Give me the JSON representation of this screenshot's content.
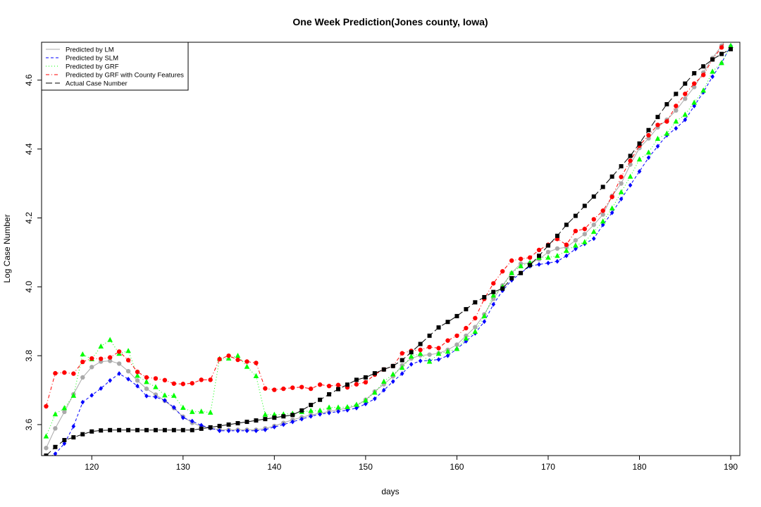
{
  "chart_data": {
    "type": "line",
    "title": "One Week Prediction(Jones county, Iowa)",
    "xlabel": "days",
    "ylabel": "Log Case Number",
    "xlim": [
      114.5,
      191
    ],
    "ylim": [
      3.51,
      4.71
    ],
    "x_ticks": [
      120,
      130,
      140,
      150,
      160,
      170,
      180,
      190
    ],
    "y_ticks": [
      3.6,
      3.8,
      4.0,
      4.2,
      4.4,
      4.6
    ],
    "grid": false,
    "legend_position": "top-left",
    "x": [
      115,
      116,
      117,
      118,
      119,
      120,
      121,
      122,
      123,
      124,
      125,
      126,
      127,
      128,
      129,
      130,
      131,
      132,
      133,
      134,
      135,
      136,
      137,
      138,
      139,
      140,
      141,
      142,
      143,
      144,
      145,
      146,
      147,
      148,
      149,
      150,
      151,
      152,
      153,
      154,
      155,
      156,
      157,
      158,
      159,
      160,
      161,
      162,
      163,
      164,
      165,
      166,
      167,
      168,
      169,
      170,
      171,
      172,
      173,
      174,
      175,
      176,
      177,
      178,
      179,
      180,
      181,
      182,
      183,
      184,
      185,
      186,
      187,
      188,
      189,
      190
    ],
    "series": [
      {
        "name": "Predicted by LM",
        "color": "#aaaaaa",
        "marker": "circle",
        "line_style": "solid",
        "values": [
          3.532,
          3.589,
          3.637,
          3.688,
          3.737,
          3.767,
          3.783,
          3.785,
          3.777,
          3.755,
          3.728,
          3.704,
          3.687,
          3.669,
          3.648,
          3.623,
          3.605,
          3.595,
          3.59,
          3.585,
          3.585,
          3.585,
          3.585,
          3.585,
          3.589,
          3.596,
          3.605,
          3.614,
          3.621,
          3.628,
          3.633,
          3.638,
          3.643,
          3.648,
          3.655,
          3.672,
          3.696,
          3.717,
          3.74,
          3.772,
          3.792,
          3.801,
          3.803,
          3.807,
          3.817,
          3.832,
          3.858,
          3.883,
          3.92,
          3.965,
          4.004,
          4.04,
          4.067,
          4.069,
          4.08,
          4.101,
          4.111,
          4.115,
          4.135,
          4.153,
          4.18,
          4.21,
          4.264,
          4.3,
          4.355,
          4.403,
          4.431,
          4.463,
          4.485,
          4.512,
          4.546,
          4.58,
          4.622,
          4.664,
          4.7,
          4.74
        ]
      },
      {
        "name": "Predicted by SLM",
        "color": "#0000ff",
        "marker": "diamond",
        "line_style": "dashed",
        "values": [
          3.5,
          3.515,
          3.545,
          3.595,
          3.665,
          3.685,
          3.705,
          3.728,
          3.748,
          3.732,
          3.712,
          3.683,
          3.68,
          3.67,
          3.65,
          3.62,
          3.61,
          3.598,
          3.59,
          3.582,
          3.582,
          3.582,
          3.582,
          3.582,
          3.585,
          3.593,
          3.6,
          3.608,
          3.616,
          3.624,
          3.63,
          3.634,
          3.638,
          3.642,
          3.648,
          3.66,
          3.675,
          3.7,
          3.725,
          3.748,
          3.775,
          3.785,
          3.786,
          3.789,
          3.8,
          3.82,
          3.842,
          3.865,
          3.899,
          3.949,
          3.989,
          4.019,
          4.04,
          4.06,
          4.065,
          4.069,
          4.074,
          4.09,
          4.11,
          4.125,
          4.14,
          4.18,
          4.215,
          4.255,
          4.295,
          4.335,
          4.375,
          4.408,
          4.44,
          4.46,
          4.485,
          4.525,
          4.565,
          4.61,
          4.65,
          4.7
        ]
      },
      {
        "name": "Predicted by GRF",
        "color": "#00ff00",
        "marker": "triangle",
        "line_style": "dotted",
        "values": [
          3.566,
          3.63,
          3.648,
          3.684,
          3.804,
          3.79,
          3.827,
          3.846,
          3.806,
          3.814,
          3.742,
          3.724,
          3.709,
          3.685,
          3.684,
          3.649,
          3.637,
          3.638,
          3.635,
          3.791,
          3.792,
          3.8,
          3.768,
          3.741,
          3.629,
          3.629,
          3.63,
          3.632,
          3.637,
          3.64,
          3.641,
          3.65,
          3.65,
          3.651,
          3.658,
          3.67,
          3.693,
          3.725,
          3.746,
          3.765,
          3.798,
          3.806,
          3.783,
          3.806,
          3.812,
          3.82,
          3.85,
          3.87,
          3.915,
          3.975,
          4.0,
          4.04,
          4.06,
          4.07,
          4.085,
          4.085,
          4.09,
          4.105,
          4.12,
          4.13,
          4.16,
          4.19,
          4.228,
          4.275,
          4.32,
          4.37,
          4.39,
          4.43,
          4.445,
          4.48,
          4.5,
          4.535,
          4.57,
          4.625,
          4.65,
          4.7
        ]
      },
      {
        "name": "Predicted by GRF with County Features",
        "color": "#ff0000",
        "marker": "circle",
        "line_style": "dashdot",
        "values": [
          3.653,
          3.749,
          3.751,
          3.748,
          3.782,
          3.792,
          3.791,
          3.795,
          3.812,
          3.787,
          3.753,
          3.737,
          3.734,
          3.729,
          3.719,
          3.718,
          3.72,
          3.73,
          3.73,
          3.79,
          3.8,
          3.788,
          3.783,
          3.779,
          3.705,
          3.701,
          3.704,
          3.707,
          3.709,
          3.704,
          3.716,
          3.712,
          3.715,
          3.708,
          3.717,
          3.723,
          3.745,
          3.76,
          3.77,
          3.807,
          3.814,
          3.817,
          3.825,
          3.822,
          3.844,
          3.858,
          3.88,
          3.909,
          3.965,
          4.01,
          4.045,
          4.076,
          4.081,
          4.085,
          4.107,
          4.122,
          4.139,
          4.122,
          4.162,
          4.168,
          4.196,
          4.221,
          4.261,
          4.319,
          4.366,
          4.41,
          4.44,
          4.47,
          4.48,
          4.525,
          4.56,
          4.59,
          4.615,
          4.66,
          4.695,
          4.74
        ]
      },
      {
        "name": "Actual Case Number",
        "color": "#000000",
        "marker": "square",
        "line_style": "longdash",
        "values": [
          3.51,
          3.535,
          3.555,
          3.563,
          3.572,
          3.58,
          3.583,
          3.584,
          3.584,
          3.584,
          3.584,
          3.584,
          3.584,
          3.584,
          3.584,
          3.584,
          3.584,
          3.588,
          3.592,
          3.596,
          3.6,
          3.604,
          3.608,
          3.612,
          3.616,
          3.62,
          3.624,
          3.628,
          3.641,
          3.657,
          3.672,
          3.688,
          3.703,
          3.716,
          3.73,
          3.737,
          3.749,
          3.76,
          3.77,
          3.787,
          3.81,
          3.834,
          3.858,
          3.882,
          3.898,
          3.915,
          3.935,
          3.955,
          3.97,
          3.985,
          3.995,
          4.025,
          4.04,
          4.063,
          4.09,
          4.12,
          4.148,
          4.18,
          4.206,
          4.235,
          4.262,
          4.29,
          4.32,
          4.35,
          4.38,
          4.416,
          4.455,
          4.493,
          4.53,
          4.56,
          4.59,
          4.62,
          4.64,
          4.66,
          4.676,
          4.69
        ]
      }
    ]
  }
}
